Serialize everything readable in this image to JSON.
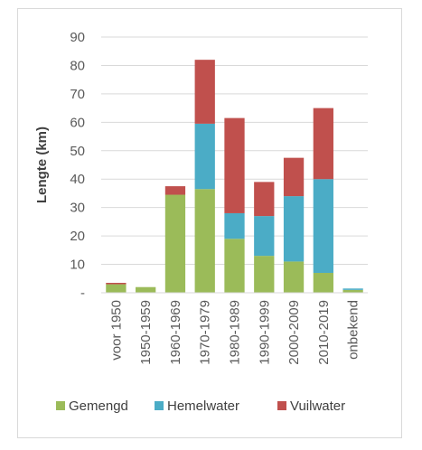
{
  "chart_data": {
    "type": "bar",
    "stacked": true,
    "categories": [
      "voor 1950",
      "1950-1959",
      "1960-1969",
      "1970-1979",
      "1980-1989",
      "1990-1999",
      "2000-2009",
      "2010-2019",
      "onbekend"
    ],
    "series": [
      {
        "name": "Gemengd",
        "color": "#9bbb59",
        "values": [
          3,
          2,
          34.5,
          36.5,
          19,
          13,
          11,
          7,
          1
        ]
      },
      {
        "name": "Hemelwater",
        "color": "#4bacc6",
        "values": [
          0,
          0,
          0,
          23,
          9,
          14,
          23,
          33,
          0.5
        ]
      },
      {
        "name": "Vuilwater",
        "color": "#c0504d",
        "values": [
          0.5,
          0,
          3,
          22.5,
          33.5,
          12,
          13.5,
          25,
          0
        ]
      }
    ],
    "ylabel": "Lengte (km)",
    "ylim": [
      0,
      90
    ],
    "yticks": [
      0,
      10,
      20,
      30,
      40,
      50,
      60,
      70,
      80,
      90
    ],
    "ytick_labels": [
      "-",
      "10",
      "20",
      "30",
      "40",
      "50",
      "60",
      "70",
      "80",
      "90"
    ],
    "grid": true,
    "legend_position": "bottom"
  }
}
